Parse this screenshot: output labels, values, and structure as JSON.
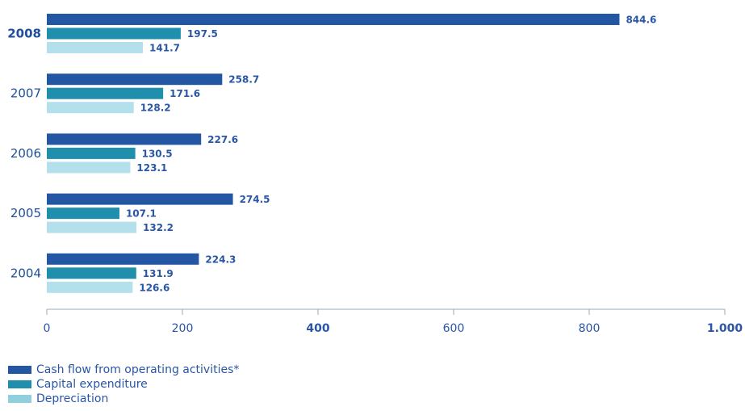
{
  "chart_data": {
    "type": "bar",
    "orientation": "horizontal",
    "categories": [
      "2008",
      "2007",
      "2006",
      "2005",
      "2004"
    ],
    "series": [
      {
        "name": "Cash flow from operating activities*",
        "color": "#2457a3",
        "values": [
          844.6,
          258.7,
          227.6,
          274.5,
          224.3
        ]
      },
      {
        "name": "Capital expenditure",
        "color": "#1f8fad",
        "values": [
          197.5,
          171.6,
          130.5,
          107.1,
          131.9
        ]
      },
      {
        "name": "Depreciation",
        "color": "#b3e0ea",
        "values": [
          141.7,
          128.2,
          123.1,
          132.2,
          126.6
        ]
      }
    ],
    "value_labels": [
      [
        "844.6",
        "197.5",
        "141.7"
      ],
      [
        "258.7",
        "171.6",
        "128.2"
      ],
      [
        "227.6",
        "130.5",
        "123.1"
      ],
      [
        "274.5",
        "107.1",
        "132.2"
      ],
      [
        "224.3",
        "131.9",
        "126.6"
      ]
    ],
    "x_ticks": [
      0,
      200,
      400,
      600,
      800,
      1000
    ],
    "x_tick_labels": [
      "0",
      "200",
      "400",
      "600",
      "800",
      "1.000"
    ],
    "xlim": [
      0,
      1000
    ],
    "bold_category": "2008",
    "bold_ticks": [
      "400",
      "1.000"
    ],
    "legend_position": "bottom-left"
  },
  "legend": {
    "items": [
      {
        "label": "Cash flow from operating activities*",
        "color": "#2457a3"
      },
      {
        "label": "Capital expenditure",
        "color": "#1f8fad"
      },
      {
        "label": "Depreciation",
        "color": "#8fd0de"
      }
    ]
  }
}
